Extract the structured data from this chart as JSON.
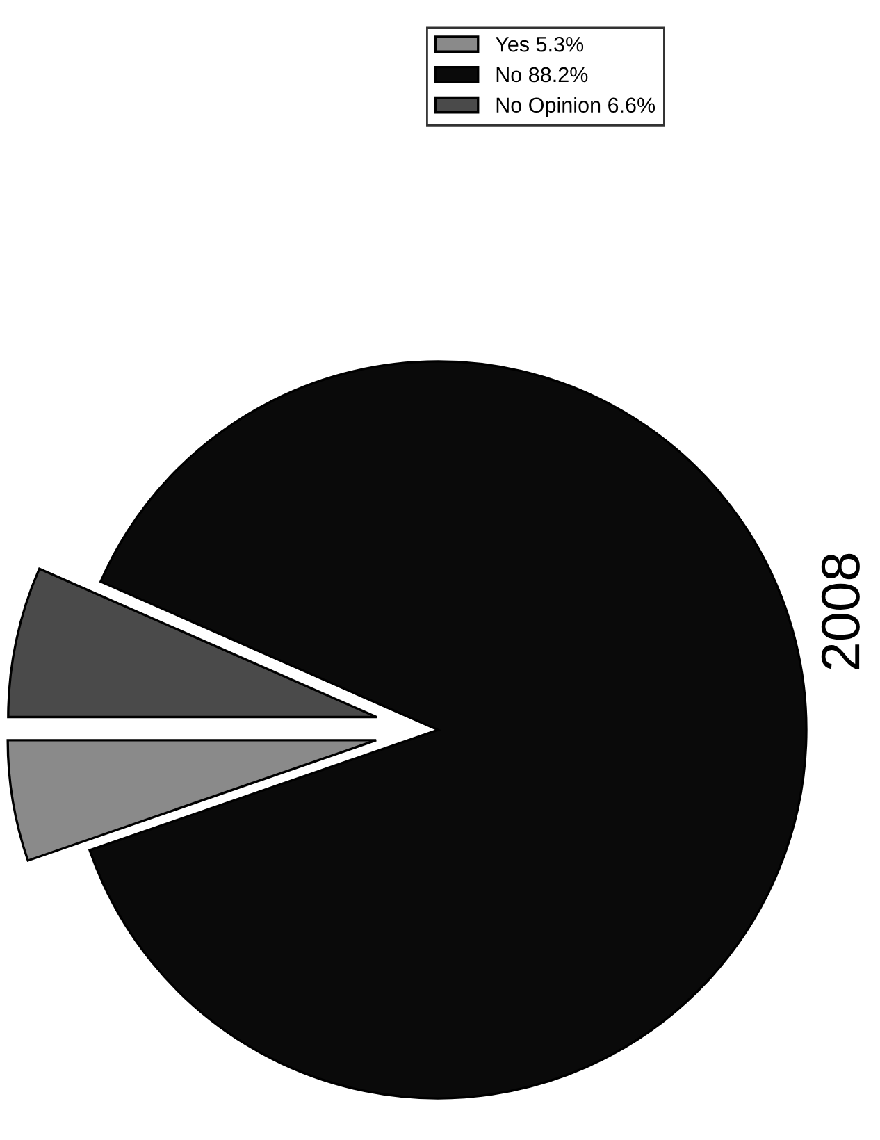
{
  "chart_data": {
    "type": "pie",
    "title": "2008",
    "categories": [
      "Yes",
      "No",
      "No Opinion"
    ],
    "values": [
      5.3,
      88.2,
      6.6
    ],
    "value_labels": [
      "5.3%",
      "88.2%",
      "6.6%"
    ],
    "colors": [
      "#8a8a8a",
      "#0a0a0a",
      "#4a4a4a"
    ],
    "legend": "top"
  }
}
